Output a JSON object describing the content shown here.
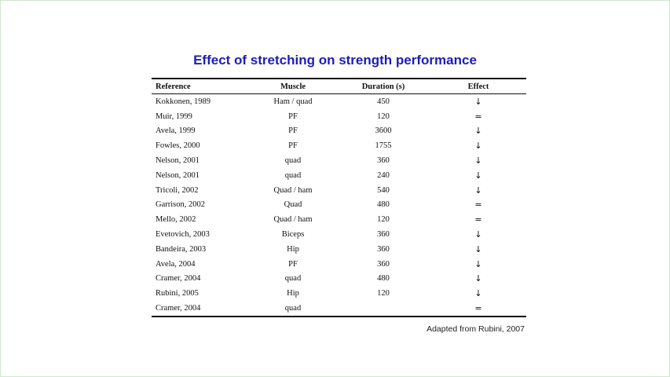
{
  "title": "Effect of stretching on strength performance",
  "table": {
    "headers": {
      "reference": "Reference",
      "muscle": "Muscle",
      "duration": "Duration (s)",
      "effect": "Effect"
    },
    "rows": [
      {
        "reference": "Kokkonen, 1989",
        "muscle": "Ham / quad",
        "duration": "450",
        "effect": "↓"
      },
      {
        "reference": "Muir, 1999",
        "muscle": "PF",
        "duration": "120",
        "effect": "="
      },
      {
        "reference": "Avela, 1999",
        "muscle": "PF",
        "duration": "3600",
        "effect": "↓"
      },
      {
        "reference": "Fowles, 2000",
        "muscle": "PF",
        "duration": "1755",
        "effect": "↓"
      },
      {
        "reference": "Nelson, 2001",
        "muscle": "quad",
        "duration": "360",
        "effect": "↓"
      },
      {
        "reference": "Nelson, 2001",
        "muscle": "quad",
        "duration": "240",
        "effect": "↓"
      },
      {
        "reference": "Tricoli, 2002",
        "muscle": "Quad / ham",
        "duration": "540",
        "effect": "↓"
      },
      {
        "reference": "Garrison, 2002",
        "muscle": "Quad",
        "duration": "480",
        "effect": "="
      },
      {
        "reference": "Mello, 2002",
        "muscle": "Quad / ham",
        "duration": "120",
        "effect": "="
      },
      {
        "reference": "Evetovich, 2003",
        "muscle": "Biceps",
        "duration": "360",
        "effect": "↓"
      },
      {
        "reference": "Bandeira, 2003",
        "muscle": "Hip",
        "duration": "360",
        "effect": "↓"
      },
      {
        "reference": "Avela, 2004",
        "muscle": "PF",
        "duration": "360",
        "effect": "↓"
      },
      {
        "reference": "Cramer, 2004",
        "muscle": "quad",
        "duration": "480",
        "effect": "↓"
      },
      {
        "reference": "Rubini, 2005",
        "muscle": "Hip",
        "duration": "120",
        "effect": "↓"
      },
      {
        "reference": "Cramer, 2004",
        "muscle": "quad",
        "duration": "",
        "effect": "="
      }
    ]
  },
  "source": "Adapted from Rubini, 2007",
  "colors": {
    "title": "#1d1db8",
    "text": "#111111",
    "background": "#ffffff"
  }
}
